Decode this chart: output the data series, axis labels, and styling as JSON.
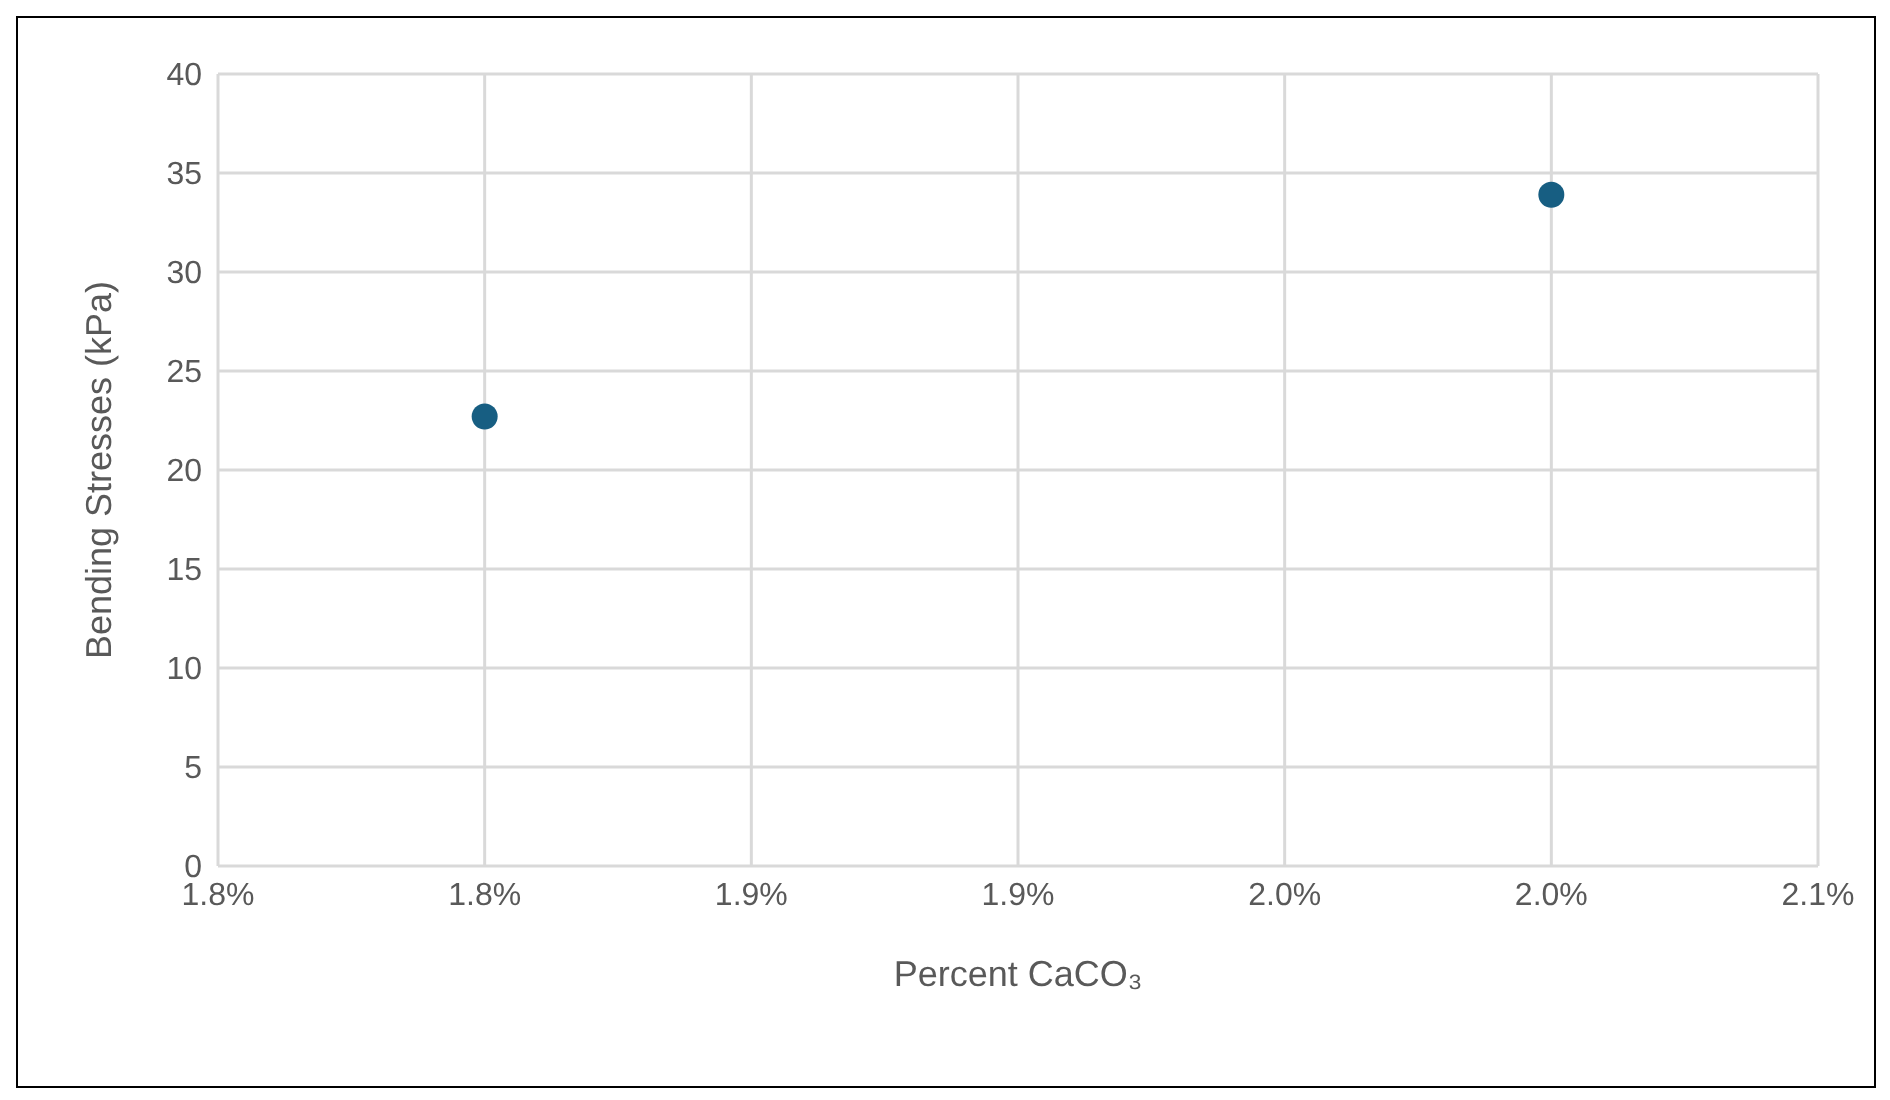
{
  "chart_data": {
    "type": "scatter",
    "xlabel": "Percent CaCO₃",
    "ylabel": "Bending Stresses (kPa)",
    "x": [
      1.8,
      2.0
    ],
    "series": [
      {
        "color": "#175e82",
        "values": [
          22.7,
          33.9
        ]
      }
    ],
    "xlim": [
      1.75,
      2.05
    ],
    "xticks": [
      {
        "value": 1.75,
        "label": "1.8%"
      },
      {
        "value": 1.8,
        "label": "1.8%"
      },
      {
        "value": 1.85,
        "label": "1.9%"
      },
      {
        "value": 1.9,
        "label": "1.9%"
      },
      {
        "value": 1.95,
        "label": "2.0%"
      },
      {
        "value": 2.0,
        "label": "2.0%"
      },
      {
        "value": 2.05,
        "label": "2.1%"
      }
    ],
    "ylim": [
      0,
      40
    ],
    "yticks": [
      0,
      5,
      10,
      15,
      20,
      25,
      30,
      35,
      40
    ],
    "grid": true,
    "marker": "circle"
  }
}
